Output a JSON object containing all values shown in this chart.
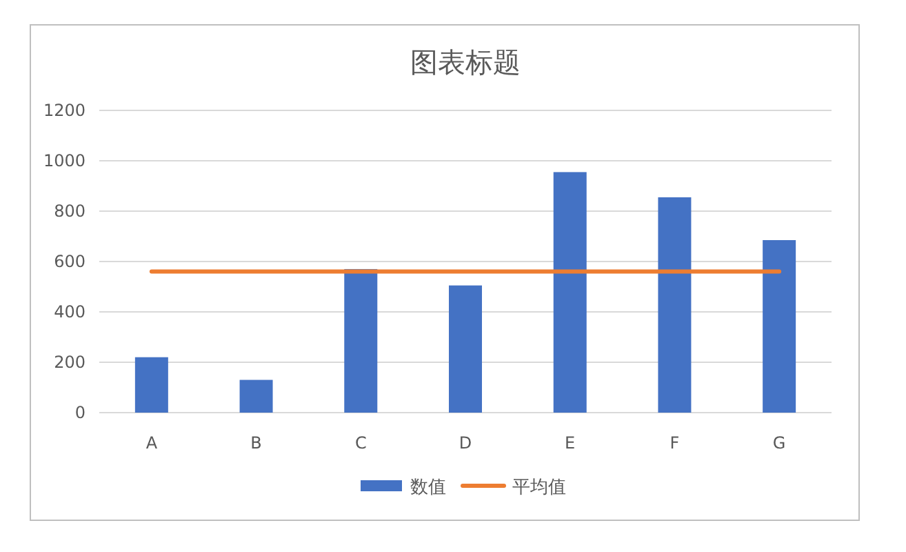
{
  "chart_data": {
    "type": "bar",
    "title": "图表标题",
    "categories": [
      "A",
      "B",
      "C",
      "D",
      "E",
      "F",
      "G"
    ],
    "series": [
      {
        "name": "数值",
        "color": "#4472c4",
        "values": [
          220,
          130,
          570,
          505,
          955,
          855,
          685
        ]
      },
      {
        "name": "平均值",
        "type": "line",
        "color": "#ed7d31",
        "values": [
          560,
          560,
          560,
          560,
          560,
          560,
          560
        ]
      }
    ],
    "ylim": [
      0,
      1200
    ],
    "yticks": [
      0,
      200,
      400,
      600,
      800,
      1000,
      1200
    ],
    "grid": "y",
    "legend": "bottom"
  }
}
